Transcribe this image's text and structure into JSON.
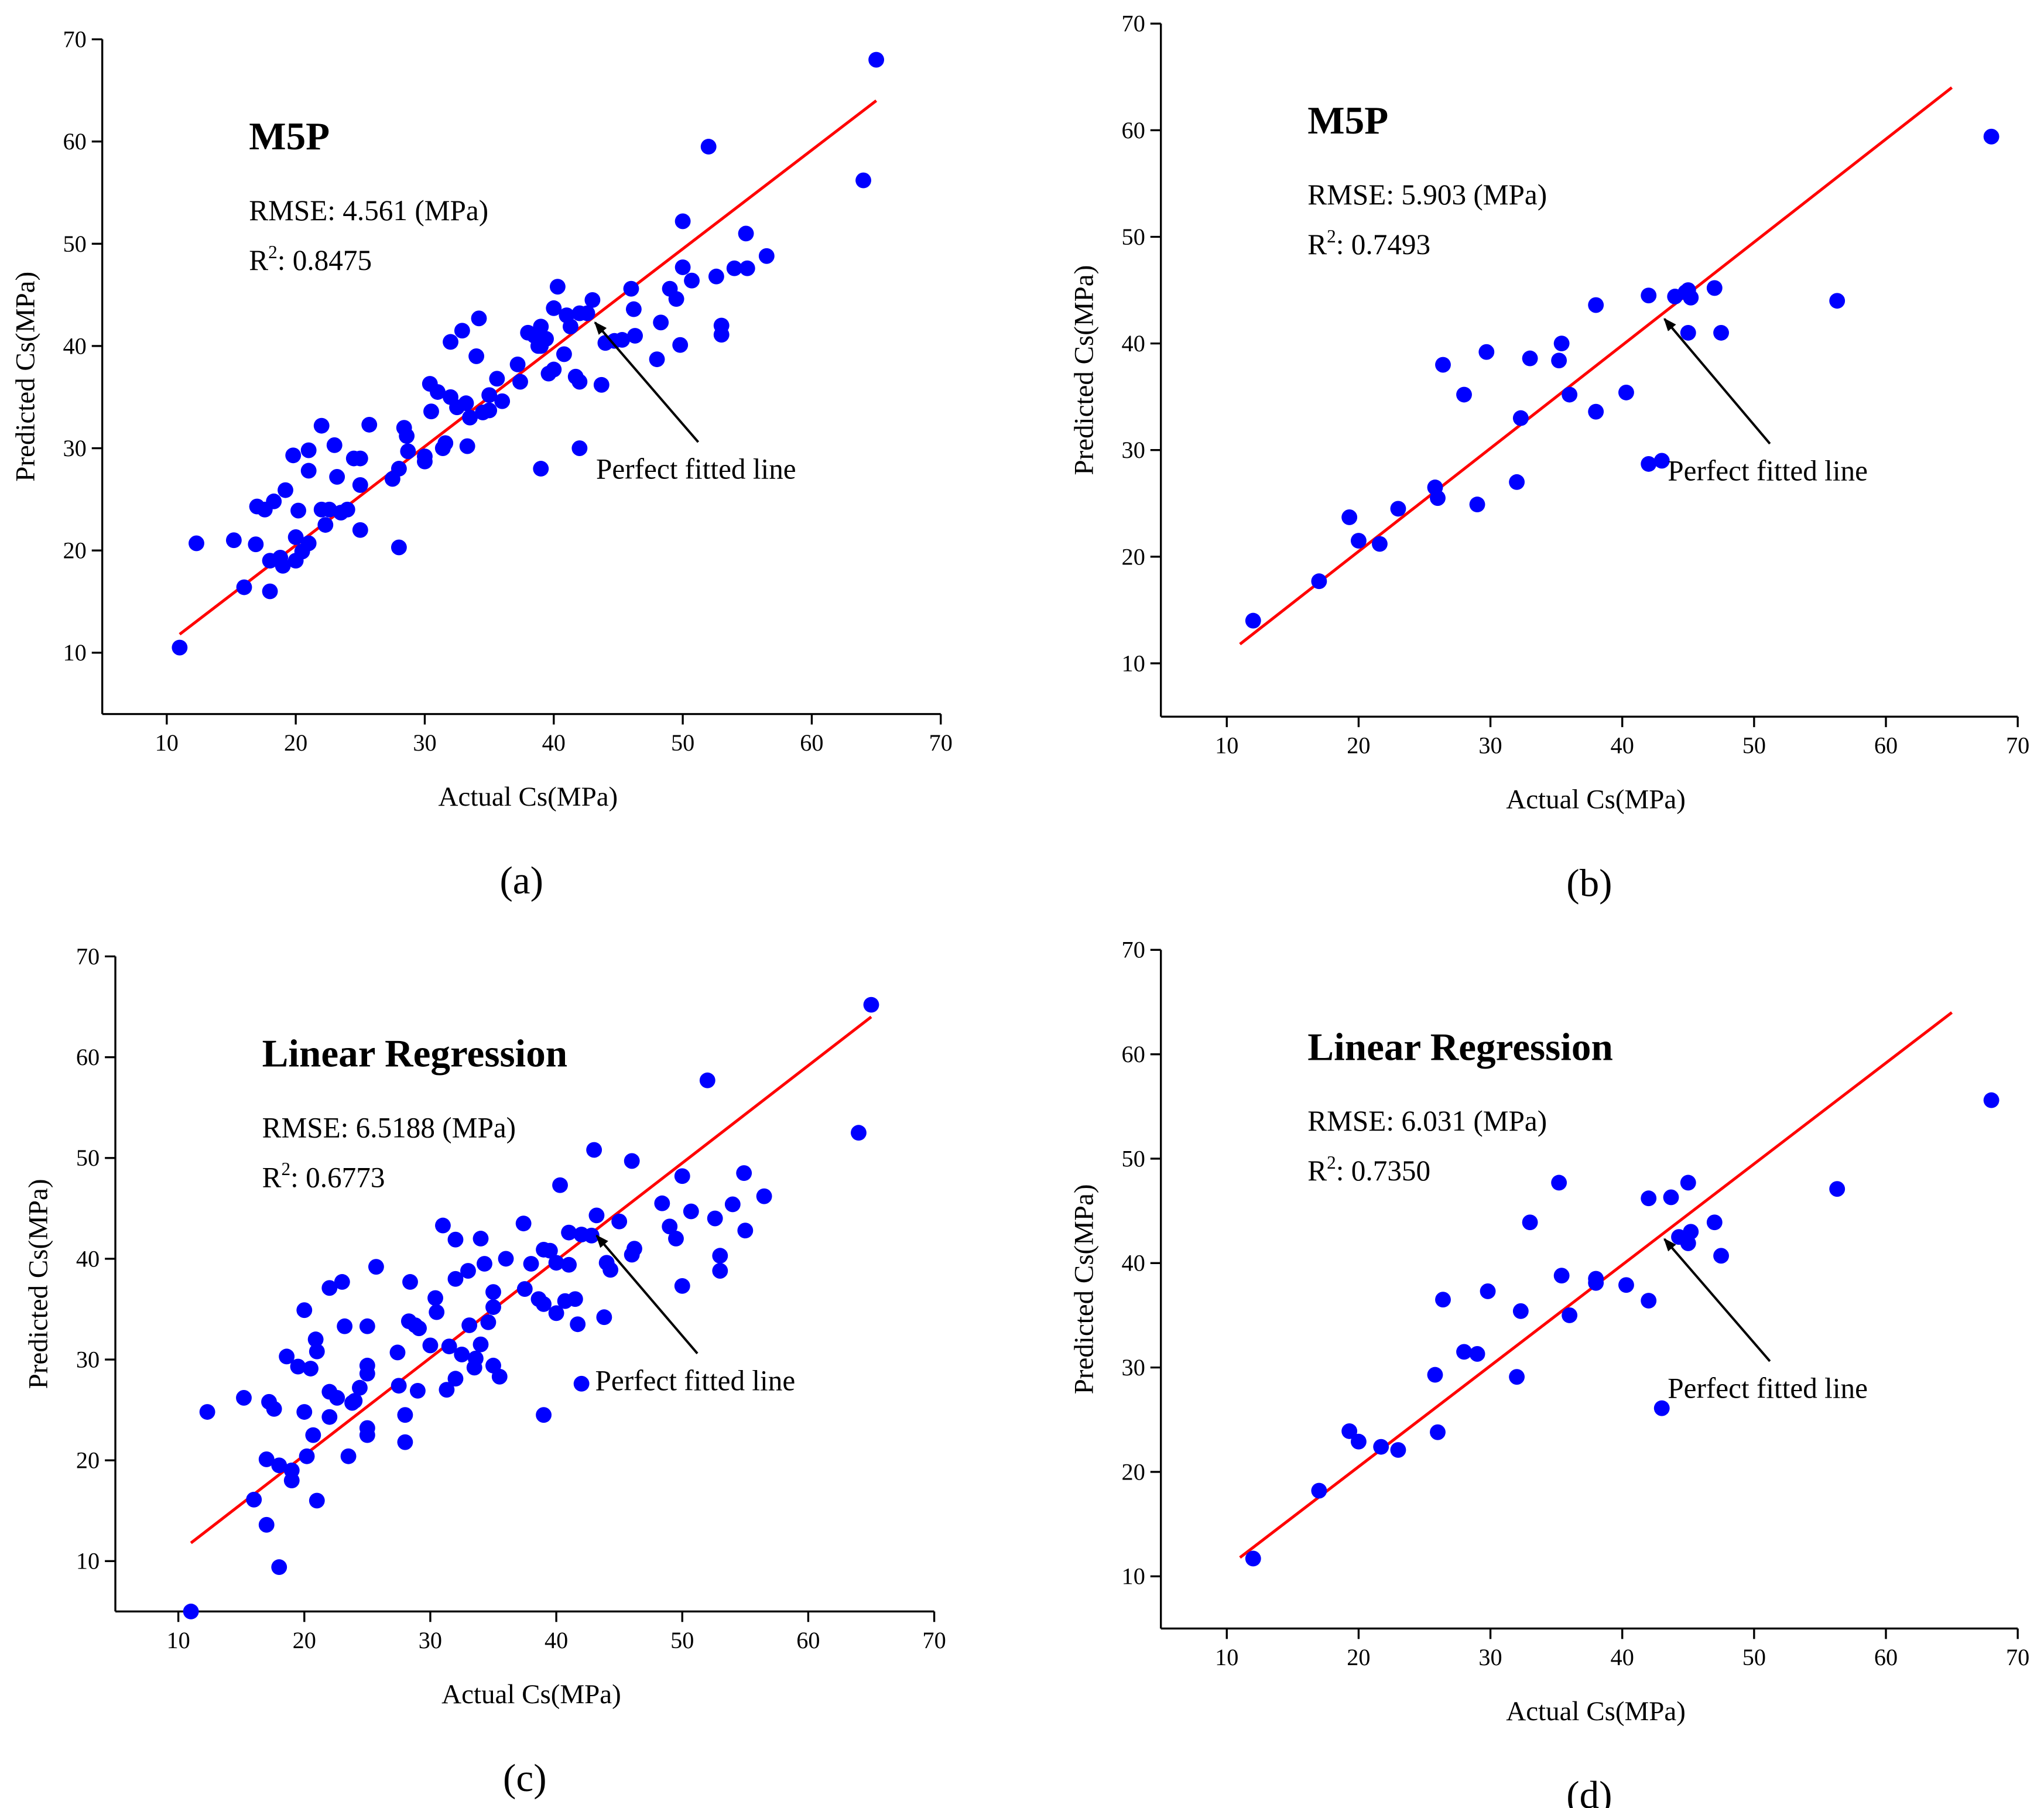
{
  "chart_data": [
    {
      "type": "scatter",
      "title": "M5P",
      "rmse_text": "RMSE: 4.561 (MPa)",
      "r2_text": {
        "base": "R",
        "sup": "2",
        "rest": ": 0.8475"
      },
      "annotation": "Perfect fitted line",
      "panel_label": "(a)",
      "x_label": "Actual Cs(MPa)",
      "y_label": "Predicted Cs(MPa)",
      "xlim": [
        5,
        70
      ],
      "ylim": [
        4,
        70
      ],
      "xticks": [
        10,
        20,
        30,
        40,
        50,
        60,
        70
      ],
      "yticks": [
        10,
        20,
        30,
        40,
        50,
        60,
        70
      ],
      "fit_line": {
        "color": "#ff0000",
        "x": [
          11,
          65
        ],
        "values": [
          11.8,
          64
        ]
      },
      "series": [
        {
          "color": "#0000ff",
          "x": [
            11,
            12.3,
            15.2,
            16,
            16.9,
            17,
            17.6,
            18,
            18,
            18.3,
            18.8,
            19,
            19.2,
            19.8,
            20,
            20,
            20.2,
            20.5,
            21,
            21,
            21,
            22,
            22,
            22.3,
            22.6,
            23,
            23.2,
            23.5,
            24,
            24.5,
            25,
            25,
            25,
            25.7,
            27.5,
            28,
            28,
            28.4,
            28.6,
            28.7,
            30,
            30,
            30.4,
            30.5,
            31,
            31.4,
            31.6,
            32,
            32,
            32.5,
            32.9,
            33.2,
            33.3,
            33.5,
            34,
            34.2,
            34.5,
            35,
            35,
            35.6,
            36,
            37.2,
            37.4,
            38,
            38.5,
            38.8,
            39,
            39,
            39,
            39.4,
            39.6,
            40,
            40,
            40.3,
            40.8,
            41,
            41.3,
            41.7,
            42,
            42,
            42,
            42.6,
            43,
            43.7,
            44,
            44.7,
            45.3,
            46,
            46.2,
            46.3,
            48,
            48.3,
            49,
            49.5,
            49.8,
            50,
            50,
            50.7,
            52,
            52.6,
            53,
            53,
            54,
            54.9,
            55,
            56.5,
            64,
            65
          ],
          "values": [
            10.5,
            20.7,
            21,
            16.4,
            20.6,
            24.3,
            24,
            19,
            16,
            24.8,
            19.3,
            18.5,
            25.9,
            29.3,
            21.3,
            19,
            23.9,
            19.9,
            27.8,
            20.7,
            29.8,
            32.2,
            24,
            22.5,
            24,
            30.3,
            27.2,
            23.7,
            24,
            29,
            29,
            22,
            26.4,
            32.3,
            27,
            28,
            20.3,
            32,
            31.2,
            29.7,
            29.2,
            28.7,
            36.3,
            33.6,
            35.5,
            30,
            30.5,
            40.4,
            35,
            34,
            41.5,
            34.4,
            30.2,
            33,
            39,
            42.7,
            33.5,
            35.2,
            33.7,
            36.8,
            34.6,
            38.2,
            36.5,
            41.3,
            41,
            40,
            40,
            41.9,
            28,
            40.7,
            37.3,
            43.7,
            37.7,
            45.8,
            39.2,
            43,
            41.9,
            37,
            43.2,
            36.5,
            30,
            43.2,
            44.5,
            36.2,
            40.3,
            40.5,
            40.6,
            45.6,
            43.6,
            41,
            38.7,
            42.3,
            45.6,
            44.6,
            40.1,
            47.7,
            52.2,
            46.4,
            59.5,
            46.8,
            42,
            41.1,
            47.6,
            51,
            47.6,
            48.8,
            56.2,
            68
          ]
        }
      ]
    },
    {
      "type": "scatter",
      "title": "M5P",
      "rmse_text": "RMSE: 5.903 (MPa)",
      "r2_text": {
        "base": "R",
        "sup": "2",
        "rest": ": 0.7493"
      },
      "annotation": "Perfect fitted line",
      "panel_label": "(b)",
      "x_label": "Actual Cs(MPa)",
      "y_label": "Predicted Cs(MPa)",
      "xlim": [
        5,
        70
      ],
      "ylim": [
        5,
        70
      ],
      "xticks": [
        10,
        20,
        30,
        40,
        50,
        60,
        70
      ],
      "yticks": [
        10,
        20,
        30,
        40,
        50,
        60,
        70
      ],
      "fit_line": {
        "color": "#ff0000",
        "x": [
          11,
          65
        ],
        "values": [
          11.8,
          64
        ]
      },
      "series": [
        {
          "color": "#0000ff",
          "x": [
            12,
            17,
            19.3,
            20,
            21.6,
            23,
            25.8,
            26,
            26.4,
            28,
            29,
            29.7,
            32,
            32.3,
            33,
            35.2,
            35.4,
            36,
            38,
            38,
            40.3,
            42,
            42,
            43,
            44,
            44.8,
            45,
            45,
            45.2,
            47,
            47.5,
            56.3,
            68
          ],
          "values": [
            14,
            17.7,
            23.7,
            21.5,
            21.2,
            24.5,
            26.5,
            25.5,
            38,
            35.2,
            24.9,
            39.2,
            27,
            33,
            38.6,
            38.4,
            40,
            35.2,
            33.6,
            43.6,
            35.4,
            28.7,
            44.5,
            29,
            44.4,
            44.8,
            45,
            41,
            44.3,
            45.2,
            41,
            44,
            59.4
          ]
        }
      ]
    },
    {
      "type": "scatter",
      "title": "Linear Regression",
      "rmse_text": "RMSE: 6.5188 (MPa)",
      "r2_text": {
        "base": "R",
        "sup": "2",
        "rest": ": 0.6773"
      },
      "annotation": "Perfect fitted line",
      "panel_label": "(c)",
      "x_label": "Actual Cs(MPa)",
      "y_label": "Predicted Cs(MPa)",
      "xlim": [
        5,
        70
      ],
      "ylim": [
        5,
        70
      ],
      "xticks": [
        10,
        20,
        30,
        40,
        50,
        60,
        70
      ],
      "yticks": [
        10,
        20,
        30,
        40,
        50,
        60,
        70
      ],
      "fit_line": {
        "color": "#ff0000",
        "x": [
          11,
          65
        ],
        "values": [
          11.8,
          64
        ]
      },
      "series": [
        {
          "color": "#0000ff",
          "x": [
            11,
            12.3,
            15.2,
            16,
            17,
            17,
            17.2,
            17.6,
            18,
            18,
            18.6,
            19,
            19,
            19.5,
            20,
            20,
            20.2,
            20.5,
            20.7,
            20.9,
            21,
            21,
            22,
            22,
            22,
            22.6,
            23,
            23.2,
            23.5,
            23.8,
            24,
            24.4,
            25,
            25,
            25,
            25,
            25,
            25.7,
            27.4,
            27.5,
            28,
            28,
            28.3,
            28.4,
            28.8,
            29,
            29.1,
            30,
            30.4,
            30.5,
            31,
            31.3,
            31.5,
            32,
            32,
            32,
            32.5,
            33,
            33.1,
            33.5,
            33.6,
            34,
            34,
            34.3,
            34.6,
            35,
            35,
            35,
            35.5,
            36,
            37.4,
            37.5,
            38,
            38.6,
            39,
            39,
            39,
            39.5,
            40,
            40,
            40.3,
            40.7,
            41,
            41,
            41.5,
            41.7,
            42,
            42,
            42.8,
            43,
            43.2,
            43.8,
            44,
            44.3,
            45,
            46,
            46,
            46.2,
            48.4,
            49,
            49.5,
            50,
            50,
            50.7,
            52,
            52.6,
            53,
            53,
            54,
            54.9,
            55,
            56.5,
            64,
            65
          ],
          "values": [
            5,
            24.8,
            26.2,
            16.1,
            20.1,
            13.6,
            25.8,
            25.1,
            9.4,
            19.5,
            30.3,
            18,
            19,
            29.3,
            34.9,
            24.8,
            20.4,
            29.1,
            22.5,
            32,
            30.8,
            16,
            37.1,
            26.8,
            24.3,
            26.2,
            37.7,
            33.3,
            20.4,
            25.7,
            25.9,
            27.2,
            33.3,
            29.4,
            28.6,
            23.2,
            22.5,
            39.2,
            30.7,
            27.4,
            24.5,
            21.8,
            33.8,
            37.7,
            33.4,
            26.9,
            33.1,
            31.4,
            36.1,
            34.7,
            43.3,
            27,
            31.3,
            38,
            41.9,
            28.1,
            30.5,
            38.8,
            33.4,
            29.2,
            30.1,
            42,
            31.5,
            39.5,
            33.7,
            36.7,
            35.2,
            29.4,
            28.3,
            40,
            43.5,
            37,
            39.5,
            36,
            24.5,
            40.9,
            35.5,
            40.8,
            34.6,
            39.6,
            47.3,
            35.8,
            42.6,
            39.4,
            36,
            33.5,
            42.4,
            27.6,
            42.3,
            50.8,
            44.3,
            34.2,
            39.6,
            38.9,
            43.7,
            49.7,
            40.4,
            41,
            45.5,
            43.2,
            42,
            48.2,
            37.3,
            44.7,
            57.7,
            44,
            40.3,
            38.8,
            45.4,
            48.5,
            42.8,
            46.2,
            52.5,
            65.2
          ]
        }
      ]
    },
    {
      "type": "scatter",
      "title": "Linear Regression",
      "rmse_text": "RMSE: 6.031 (MPa)",
      "r2_text": {
        "base": "R",
        "sup": "2",
        "rest": ": 0.7350"
      },
      "annotation": "Perfect fitted line",
      "panel_label": "(d)",
      "x_label": "Actual Cs(MPa)",
      "y_label": "Predicted Cs(MPa)",
      "xlim": [
        5,
        70
      ],
      "ylim": [
        5,
        70
      ],
      "xticks": [
        10,
        20,
        30,
        40,
        50,
        60,
        70
      ],
      "yticks": [
        10,
        20,
        30,
        40,
        50,
        60,
        70
      ],
      "fit_line": {
        "color": "#ff0000",
        "x": [
          11,
          65
        ],
        "values": [
          11.8,
          64
        ]
      },
      "series": [
        {
          "color": "#0000ff",
          "x": [
            12,
            17,
            19.3,
            20,
            21.7,
            23,
            25.8,
            26,
            26.4,
            28,
            29,
            29.8,
            32,
            32.3,
            33,
            35.2,
            35.4,
            36,
            38,
            38,
            40.3,
            42,
            42,
            43,
            43.7,
            44.3,
            45,
            45,
            45.2,
            47,
            47.5,
            56.3,
            68
          ],
          "values": [
            11.7,
            18.2,
            23.9,
            22.9,
            22.4,
            22.1,
            29.3,
            23.8,
            36.5,
            31.5,
            31.3,
            37.3,
            29.1,
            35.4,
            43.9,
            47.7,
            38.8,
            35,
            38.5,
            38.1,
            37.9,
            36.4,
            46.2,
            26.1,
            46.3,
            42.5,
            47.7,
            41.9,
            43,
            43.9,
            40.7,
            47.1,
            55.6
          ]
        }
      ]
    }
  ]
}
